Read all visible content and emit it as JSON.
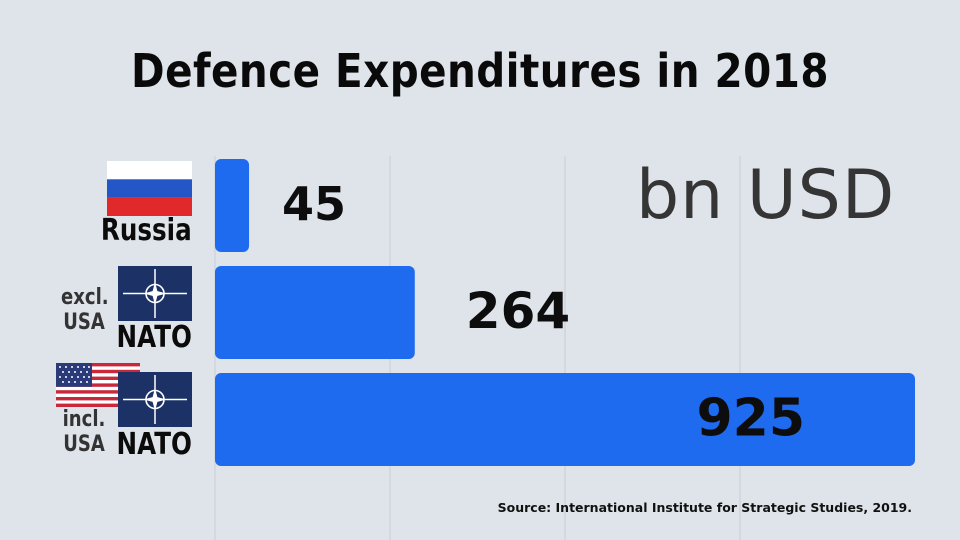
{
  "chart_data": {
    "type": "bar",
    "orientation": "horizontal",
    "title": "Defence Expenditures in 2018",
    "unit_label": "bn USD",
    "categories": [
      "Russia",
      "NATO excl. USA",
      "NATO incl. USA"
    ],
    "values": [
      45,
      264,
      925
    ],
    "xlim": [
      0,
      925
    ],
    "grid": true,
    "bar_color": "#1f6bf0",
    "source": "Source: International Institute for Strategic Studies, 2019."
  },
  "labels": {
    "russia": {
      "name": "Russia"
    },
    "nato_excl": {
      "qualifier_line1": "excl.",
      "qualifier_line2": "USA",
      "name": "NATO"
    },
    "nato_incl": {
      "qualifier_line1": "incl.",
      "qualifier_line2": "USA",
      "name": "NATO"
    }
  },
  "icons": {
    "russia_flag": "russia-flag-icon",
    "nato_flag": "nato-flag-icon",
    "usa_flag": "usa-flag-icon"
  }
}
